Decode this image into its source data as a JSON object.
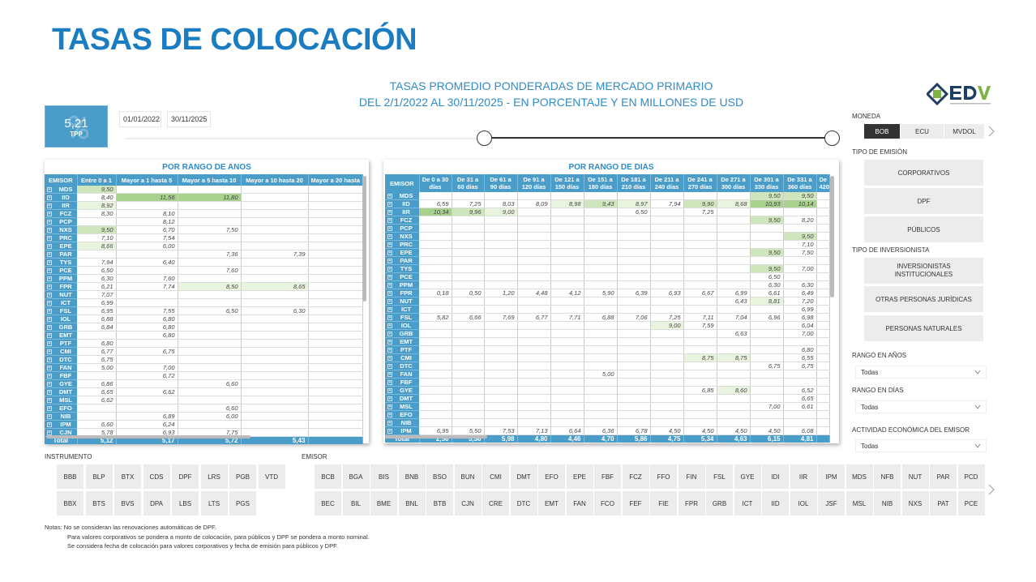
{
  "page_title": "TASAS DE COLOCACIÓN",
  "subtitle_line1": "TASAS PROMEDIO PONDERADAS DE MERCADO PRIMARIO",
  "subtitle_line2": "DEL 2/1/2022 AL 30/11/2025 - EN PORCENTAJE Y EN MILLONES DE USD",
  "kpi": {
    "value": "5,21",
    "label": "TPP",
    "icon": "percent-icon"
  },
  "date_range": {
    "start": "01/01/2022",
    "end": "30/11/2025"
  },
  "logo": {
    "text": "EDV",
    "subtext": "ENTIDAD DE DEPÓSITO DE VALORES"
  },
  "colors": {
    "accent": "#4a9cc9",
    "title": "#1a7cc1",
    "highlight_strong": "#a9d18e",
    "highlight_light": "#e9f4df"
  },
  "anos_table": {
    "title": "POR RANGO DE ANOS",
    "columns": [
      "EMISOR",
      "Entre 0 a 1",
      "Mayor a 1 hasta 5",
      "Mayor a 5 hasta 10",
      "Mayor a 10 hasta 20",
      "Mayor a 20 hasta"
    ],
    "rows": [
      [
        "MDS",
        "9,50",
        "",
        "",
        "",
        ""
      ],
      [
        "IID",
        "8,40",
        "11,56",
        "11,80",
        "",
        ""
      ],
      [
        "IIR",
        "8,92",
        "",
        "",
        "",
        ""
      ],
      [
        "FCZ",
        "8,30",
        "8,10",
        "",
        "",
        ""
      ],
      [
        "PCP",
        "",
        "8,12",
        "",
        "",
        ""
      ],
      [
        "NXS",
        "9,50",
        "6,70",
        "7,50",
        "",
        ""
      ],
      [
        "PRC",
        "7,10",
        "7,54",
        "",
        "",
        ""
      ],
      [
        "EPE",
        "8,66",
        "6,00",
        "",
        "",
        ""
      ],
      [
        "PAR",
        "",
        "",
        "7,36",
        "7,39",
        ""
      ],
      [
        "TYS",
        "7,94",
        "6,40",
        "",
        "",
        ""
      ],
      [
        "PCE",
        "6,50",
        "",
        "7,60",
        "",
        ""
      ],
      [
        "PPM",
        "6,30",
        "7,60",
        "",
        "",
        ""
      ],
      [
        "FPR",
        "6,21",
        "7,74",
        "8,50",
        "8,65",
        ""
      ],
      [
        "NUT",
        "7,07",
        "",
        "",
        "",
        ""
      ],
      [
        "ICT",
        "6,99",
        "",
        "",
        "",
        ""
      ],
      [
        "FSL",
        "6,95",
        "7,55",
        "6,50",
        "6,30",
        ""
      ],
      [
        "IOL",
        "6,88",
        "6,80",
        "",
        "",
        ""
      ],
      [
        "GRB",
        "6,84",
        "6,80",
        "",
        "",
        ""
      ],
      [
        "EMT",
        "",
        "6,80",
        "",
        "",
        ""
      ],
      [
        "PTF",
        "6,80",
        "",
        "",
        "",
        ""
      ],
      [
        "CMI",
        "6,77",
        "6,75",
        "",
        "",
        ""
      ],
      [
        "DTC",
        "6,75",
        "",
        "",
        "",
        ""
      ],
      [
        "FAN",
        "5,00",
        "7,00",
        "",
        "",
        ""
      ],
      [
        "FBF",
        "",
        "6,72",
        "",
        "",
        ""
      ],
      [
        "GYE",
        "6,86",
        "",
        "6,60",
        "",
        ""
      ],
      [
        "DMT",
        "6,65",
        "6,62",
        "",
        "",
        ""
      ],
      [
        "MSL",
        "6,62",
        "",
        "",
        "",
        ""
      ],
      [
        "EFO",
        "",
        "",
        "6,60",
        "",
        ""
      ],
      [
        "NIB",
        "",
        "6,89",
        "6,00",
        "",
        ""
      ],
      [
        "IPM",
        "6,60",
        "6,24",
        "",
        "",
        ""
      ],
      [
        "CJN",
        "5,78",
        "6,93",
        "7,75",
        "",
        ""
      ]
    ],
    "total": [
      "Total",
      "5,12",
      "5,17",
      "5,72",
      "5,43",
      ""
    ]
  },
  "dias_table": {
    "title": "POR RANGO DE DIAS",
    "columns": [
      "EMISOR",
      "De 0 a 30 días",
      "De 31 a 60 días",
      "De 61 a 90 días",
      "De 91 a 120 días",
      "De 121 a 150 días",
      "De 151 a 180 días",
      "De 181 a 210 días",
      "De 211 a 240 días",
      "De 241 a 270 días",
      "De 271 a 300 días",
      "De 301 a 330 días",
      "De 331 a 360 días",
      "De 420"
    ],
    "rows": [
      [
        "MDS",
        "",
        "",
        "",
        "",
        "",
        "",
        "",
        "",
        "",
        "",
        "9,50",
        "9,50",
        ""
      ],
      [
        "IID",
        "6,59",
        "7,25",
        "8,03",
        "8,09",
        "8,98",
        "9,43",
        "8,97",
        "7,94",
        "9,90",
        "8,68",
        "10,93",
        "10,14",
        ""
      ],
      [
        "IIR",
        "10,34",
        "9,96",
        "9,00",
        "",
        "",
        "",
        "6,50",
        "",
        "7,25",
        "",
        "",
        "",
        ""
      ],
      [
        "FCZ",
        "",
        "",
        "",
        "",
        "",
        "",
        "",
        "",
        "",
        "",
        "9,50",
        "8,20",
        ""
      ],
      [
        "PCP",
        "",
        "",
        "",
        "",
        "",
        "",
        "",
        "",
        "",
        "",
        "",
        "",
        ""
      ],
      [
        "NXS",
        "",
        "",
        "",
        "",
        "",
        "",
        "",
        "",
        "",
        "",
        "",
        "9,50",
        ""
      ],
      [
        "PRC",
        "",
        "",
        "",
        "",
        "",
        "",
        "",
        "",
        "",
        "",
        "",
        "7,10",
        ""
      ],
      [
        "EPE",
        "",
        "",
        "",
        "",
        "",
        "",
        "",
        "",
        "",
        "",
        "9,50",
        "7,50",
        ""
      ],
      [
        "PAR",
        "",
        "",
        "",
        "",
        "",
        "",
        "",
        "",
        "",
        "",
        "",
        "",
        ""
      ],
      [
        "TYS",
        "",
        "",
        "",
        "",
        "",
        "",
        "",
        "",
        "",
        "",
        "9,50",
        "7,00",
        ""
      ],
      [
        "PCE",
        "",
        "",
        "",
        "",
        "",
        "",
        "",
        "",
        "",
        "",
        "6,50",
        "",
        ""
      ],
      [
        "PPM",
        "",
        "",
        "",
        "",
        "",
        "",
        "",
        "",
        "",
        "",
        "6,30",
        "6,30",
        ""
      ],
      [
        "FPR",
        "0,18",
        "0,50",
        "1,20",
        "4,48",
        "4,12",
        "5,90",
        "6,39",
        "6,93",
        "6,67",
        "6,99",
        "6,61",
        "6,49",
        ""
      ],
      [
        "NUT",
        "",
        "",
        "",
        "",
        "",
        "",
        "",
        "",
        "",
        "6,43",
        "8,81",
        "7,20",
        ""
      ],
      [
        "ICT",
        "",
        "",
        "",
        "",
        "",
        "",
        "",
        "",
        "",
        "",
        "",
        "6,99",
        ""
      ],
      [
        "FSL",
        "5,82",
        "6,66",
        "7,69",
        "6,77",
        "7,71",
        "6,88",
        "7,06",
        "7,25",
        "7,11",
        "7,04",
        "6,96",
        "6,98",
        ""
      ],
      [
        "IOL",
        "",
        "",
        "",
        "",
        "",
        "",
        "",
        "9,00",
        "7,59",
        "",
        "",
        "6,04",
        ""
      ],
      [
        "GRB",
        "",
        "",
        "",
        "",
        "",
        "",
        "",
        "",
        "",
        "6,63",
        "",
        "7,00",
        ""
      ],
      [
        "EMT",
        "",
        "",
        "",
        "",
        "",
        "",
        "",
        "",
        "",
        "",
        "",
        "",
        ""
      ],
      [
        "PTF",
        "",
        "",
        "",
        "",
        "",
        "",
        "",
        "",
        "",
        "",
        "",
        "6,80",
        ""
      ],
      [
        "CMI",
        "",
        "",
        "",
        "",
        "",
        "",
        "",
        "",
        "8,75",
        "8,75",
        "",
        "6,55",
        ""
      ],
      [
        "DTC",
        "",
        "",
        "",
        "",
        "",
        "",
        "",
        "",
        "",
        "",
        "6,75",
        "6,75",
        ""
      ],
      [
        "FAN",
        "",
        "",
        "",
        "",
        "",
        "5,00",
        "",
        "",
        "",
        "",
        "",
        "",
        ""
      ],
      [
        "FBF",
        "",
        "",
        "",
        "",
        "",
        "",
        "",
        "",
        "",
        "",
        "",
        "",
        ""
      ],
      [
        "GYE",
        "",
        "",
        "",
        "",
        "",
        "",
        "",
        "",
        "6,85",
        "8,60",
        "",
        "6,52",
        ""
      ],
      [
        "DMT",
        "",
        "",
        "",
        "",
        "",
        "",
        "",
        "",
        "",
        "",
        "",
        "6,65",
        ""
      ],
      [
        "MSL",
        "",
        "",
        "",
        "",
        "",
        "",
        "",
        "",
        "",
        "",
        "7,00",
        "6,61",
        ""
      ],
      [
        "EFO",
        "",
        "",
        "",
        "",
        "",
        "",
        "",
        "",
        "",
        "",
        "",
        "",
        ""
      ],
      [
        "NIB",
        "",
        "",
        "",
        "",
        "",
        "",
        "",
        "",
        "",
        "",
        "",
        "",
        ""
      ],
      [
        "IPM",
        "6,95",
        "5,50",
        "7,53",
        "7,13",
        "6,64",
        "6,36",
        "6,78",
        "4,50",
        "4,50",
        "4,50",
        "4,50",
        "6,08",
        ""
      ]
    ],
    "total": [
      "Total",
      "2,56",
      "5,36",
      "5,98",
      "4,80",
      "4,46",
      "4,70",
      "5,86",
      "4,75",
      "5,34",
      "4,63",
      "6,15",
      "4,81",
      ""
    ]
  },
  "filters": {
    "moneda": {
      "label": "MONEDA",
      "options": [
        "BOB",
        "ECU",
        "MVDOL"
      ],
      "selected": "BOB"
    },
    "tipo_emision": {
      "label": "TIPO DE EMISIÓN",
      "options": [
        "CORPORATIVOS",
        "DPF",
        "PÚBLICOS"
      ]
    },
    "tipo_inversionista": {
      "label": "TIPO DE INVERSIONISTA",
      "options": [
        "INVERSIONISTAS INSTITUCIONALES",
        "OTRAS PERSONAS JURÍDICAS",
        "PERSONAS NATURALES"
      ]
    },
    "rango_anos": {
      "label": "RANGO EN AÑOS",
      "value": "Todas"
    },
    "rango_dias": {
      "label": "RANGO EN DÍAS",
      "value": "Todas"
    },
    "actividad": {
      "label": "ACTIVIDAD ECONÓMICA DEL EMISOR",
      "value": "Todas"
    }
  },
  "instrumento": {
    "label": "INSTRUMENTO",
    "row1": [
      "BBB",
      "BLP",
      "BTX",
      "CDS",
      "DPF",
      "LRS",
      "PGB",
      "VTD"
    ],
    "row2": [
      "BBX",
      "BTS",
      "BVS",
      "DPA",
      "LBS",
      "LTS",
      "PGS"
    ]
  },
  "emisor": {
    "label": "EMISOR",
    "row1": [
      "BCB",
      "BGA",
      "BIS",
      "BNB",
      "BSO",
      "BUN",
      "CMI",
      "DMT",
      "EFO",
      "EPE",
      "FBF",
      "FCZ",
      "FFO",
      "FIN",
      "FSL",
      "GYE",
      "IDI",
      "IIR",
      "IPM",
      "MDS",
      "NFB",
      "NUT",
      "PAR",
      "PCD"
    ],
    "row2": [
      "BEC",
      "BIL",
      "BME",
      "BNL",
      "BTB",
      "CJN",
      "CRE",
      "DTC",
      "EMT",
      "FAN",
      "FCO",
      "FEF",
      "FIE",
      "FPR",
      "GRB",
      "ICT",
      "IID",
      "IOL",
      "JSF",
      "MSL",
      "NIB",
      "NXS",
      "PAT",
      "PCE"
    ]
  },
  "notes": [
    "Notas: No se consideran las renovaciones automáticas de DPF.",
    "Para valores corporativos se pondera a monto de colocación, para públicos y DPF se pondera a monto nominal.",
    "Se considera fecha de colocación para valores corporativos y fecha de emisión para públicos y DPF."
  ]
}
